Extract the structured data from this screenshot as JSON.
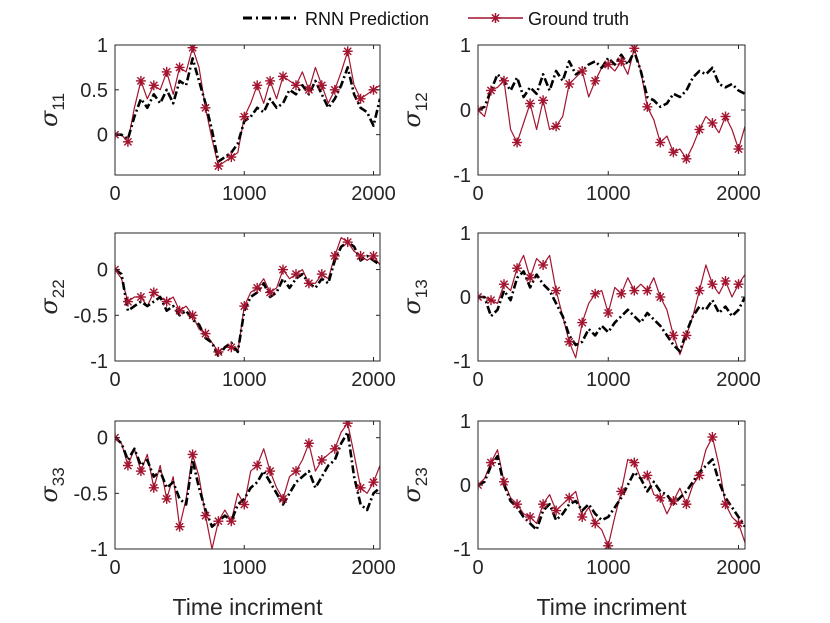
{
  "chart_data": {
    "type": "line",
    "legend": {
      "placement": "top",
      "entries": [
        {
          "name": "RNN Prediction",
          "color": "#000000",
          "style": "dash-dot"
        },
        {
          "name": "Ground truth",
          "color": "#a2142f",
          "style": "solid-asterisk"
        }
      ]
    },
    "colors": {
      "prediction": "#000000",
      "truth": "#a2142f",
      "axis": "#262626"
    },
    "subplots": [
      {
        "ylabel": "σ",
        "ysub": "11",
        "xlabel": "",
        "xlim": [
          0,
          2050
        ],
        "ylim": [
          -0.45,
          1.0
        ],
        "xticks": [
          0,
          1000,
          2000
        ],
        "yticks": [
          0,
          0.5,
          1
        ],
        "ytick_labels": [
          "0",
          "0.5",
          "1"
        ],
        "x": [
          0,
          50,
          100,
          150,
          200,
          250,
          300,
          350,
          400,
          450,
          500,
          550,
          600,
          650,
          700,
          750,
          800,
          850,
          900,
          950,
          1000,
          1050,
          1100,
          1150,
          1200,
          1250,
          1300,
          1350,
          1400,
          1450,
          1500,
          1550,
          1600,
          1650,
          1700,
          1750,
          1800,
          1850,
          1900,
          1950,
          2000,
          2050
        ],
        "series": [
          {
            "name": "RNN Prediction",
            "values": [
              0,
              0,
              -0.05,
              0.2,
              0.4,
              0.3,
              0.45,
              0.35,
              0.5,
              0.35,
              0.6,
              0.55,
              0.85,
              0.6,
              0.35,
              0.05,
              -0.3,
              -0.25,
              -0.2,
              -0.1,
              0.15,
              0.2,
              0.3,
              0.25,
              0.4,
              0.3,
              0.35,
              0.5,
              0.45,
              0.55,
              0.45,
              0.6,
              0.45,
              0.3,
              0.4,
              0.55,
              0.75,
              0.45,
              0.3,
              0.25,
              0.1,
              0.4
            ]
          },
          {
            "name": "Ground truth",
            "values": [
              0,
              0,
              -0.08,
              0.3,
              0.6,
              0.4,
              0.55,
              0.5,
              0.7,
              0.45,
              0.75,
              0.7,
              0.97,
              0.75,
              0.3,
              -0.05,
              -0.35,
              -0.3,
              -0.25,
              -0.2,
              0.2,
              0.35,
              0.55,
              0.35,
              0.6,
              0.4,
              0.65,
              0.6,
              0.55,
              0.7,
              0.5,
              0.75,
              0.55,
              0.35,
              0.5,
              0.7,
              0.93,
              0.55,
              0.4,
              0.45,
              0.5,
              0.55
            ]
          }
        ]
      },
      {
        "ylabel": "σ",
        "ysub": "12",
        "xlabel": "",
        "xlim": [
          0,
          2050
        ],
        "ylim": [
          -1,
          1
        ],
        "xticks": [
          0,
          1000,
          2000
        ],
        "yticks": [
          -1,
          0,
          1
        ],
        "ytick_labels": [
          "-1",
          "0",
          "1"
        ],
        "x": [
          0,
          50,
          100,
          150,
          200,
          250,
          300,
          350,
          400,
          450,
          500,
          550,
          600,
          650,
          700,
          750,
          800,
          850,
          900,
          950,
          1000,
          1050,
          1100,
          1150,
          1200,
          1250,
          1300,
          1350,
          1400,
          1450,
          1500,
          1550,
          1600,
          1650,
          1700,
          1750,
          1800,
          1850,
          1900,
          1950,
          2000,
          2050
        ],
        "series": [
          {
            "name": "RNN Prediction",
            "values": [
              0,
              0.05,
              0.3,
              0.55,
              0.45,
              0.3,
              0.5,
              0.2,
              0.35,
              0.25,
              0.55,
              0.3,
              0.6,
              0.45,
              0.75,
              0.55,
              0.6,
              0.7,
              0.75,
              0.65,
              0.8,
              0.7,
              0.85,
              0.7,
              0.9,
              0.6,
              0.2,
              0.15,
              0.05,
              0.1,
              0.25,
              0.2,
              0.3,
              0.5,
              0.6,
              0.55,
              0.65,
              0.4,
              0.35,
              0.4,
              0.3,
              0.25
            ]
          },
          {
            "name": "Ground truth",
            "values": [
              0,
              -0.1,
              0.3,
              0.35,
              0.45,
              -0.3,
              -0.5,
              -0.2,
              0.1,
              -0.3,
              0.15,
              -0.3,
              -0.25,
              -0.1,
              0.4,
              0.5,
              0.6,
              0.2,
              0.45,
              0.65,
              0.7,
              0.6,
              0.75,
              0.55,
              0.95,
              0.6,
              0.05,
              -0.15,
              -0.5,
              -0.4,
              -0.65,
              -0.6,
              -0.75,
              -0.55,
              -0.3,
              -0.1,
              -0.2,
              -0.35,
              -0.1,
              -0.3,
              -0.6,
              -0.25
            ]
          }
        ]
      },
      {
        "ylabel": "σ",
        "ysub": "22",
        "xlabel": "",
        "xlim": [
          0,
          2050
        ],
        "ylim": [
          -1,
          0.4
        ],
        "xticks": [
          0,
          1000,
          2000
        ],
        "yticks": [
          -1,
          -0.5,
          0
        ],
        "ytick_labels": [
          "-1",
          "-0.5",
          "0"
        ],
        "x": [
          0,
          50,
          100,
          150,
          200,
          250,
          300,
          350,
          400,
          450,
          500,
          550,
          600,
          650,
          700,
          750,
          800,
          850,
          900,
          950,
          1000,
          1050,
          1100,
          1150,
          1200,
          1250,
          1300,
          1350,
          1400,
          1450,
          1500,
          1550,
          1600,
          1650,
          1700,
          1750,
          1800,
          1850,
          1900,
          1950,
          2000,
          2050
        ],
        "series": [
          {
            "name": "RNN Prediction",
            "values": [
              0,
              -0.05,
              -0.45,
              -0.4,
              -0.35,
              -0.4,
              -0.35,
              -0.3,
              -0.45,
              -0.4,
              -0.5,
              -0.45,
              -0.55,
              -0.6,
              -0.75,
              -0.8,
              -0.95,
              -0.85,
              -0.8,
              -0.9,
              -0.45,
              -0.3,
              -0.25,
              -0.15,
              -0.3,
              -0.25,
              -0.1,
              -0.2,
              -0.1,
              -0.05,
              -0.15,
              -0.2,
              -0.1,
              -0.15,
              0.1,
              0.25,
              0.3,
              0.25,
              0.1,
              0.15,
              0.1,
              0.05
            ]
          },
          {
            "name": "Ground truth",
            "values": [
              0,
              -0.1,
              -0.35,
              -0.3,
              -0.3,
              -0.4,
              -0.25,
              -0.3,
              -0.35,
              -0.3,
              -0.45,
              -0.4,
              -0.5,
              -0.65,
              -0.7,
              -0.8,
              -0.9,
              -0.85,
              -0.85,
              -0.9,
              -0.4,
              -0.25,
              -0.2,
              -0.1,
              -0.25,
              -0.2,
              0,
              -0.1,
              -0.05,
              0,
              -0.15,
              -0.15,
              -0.05,
              -0.1,
              0.15,
              0.35,
              0.3,
              0.2,
              0.15,
              0.1,
              0.15,
              0.05
            ]
          }
        ]
      },
      {
        "ylabel": "σ",
        "ysub": "13",
        "xlabel": "",
        "xlim": [
          0,
          2050
        ],
        "ylim": [
          -1,
          1
        ],
        "xticks": [
          0,
          1000,
          2000
        ],
        "yticks": [
          -1,
          0,
          1
        ],
        "ytick_labels": [
          "-1",
          "0",
          "1"
        ],
        "x": [
          0,
          50,
          100,
          150,
          200,
          250,
          300,
          350,
          400,
          450,
          500,
          550,
          600,
          650,
          700,
          750,
          800,
          850,
          900,
          950,
          1000,
          1050,
          1100,
          1150,
          1200,
          1250,
          1300,
          1350,
          1400,
          1450,
          1500,
          1550,
          1600,
          1650,
          1700,
          1750,
          1800,
          1850,
          1900,
          1950,
          2000,
          2050
        ],
        "series": [
          {
            "name": "RNN Prediction",
            "values": [
              0,
              0,
              -0.3,
              -0.2,
              0.1,
              -0.05,
              0.3,
              0.4,
              0.15,
              0.35,
              0.2,
              0.1,
              -0.1,
              -0.3,
              -0.6,
              -0.75,
              -0.7,
              -0.5,
              -0.6,
              -0.45,
              -0.55,
              -0.4,
              -0.3,
              -0.2,
              -0.3,
              -0.4,
              -0.25,
              -0.35,
              -0.45,
              -0.6,
              -0.75,
              -0.85,
              -0.55,
              -0.3,
              -0.15,
              -0.2,
              -0.05,
              -0.25,
              -0.15,
              -0.3,
              -0.2,
              0
            ]
          },
          {
            "name": "Ground truth",
            "values": [
              0,
              0,
              -0.05,
              -0.1,
              0.2,
              0.1,
              0.45,
              0.65,
              0.3,
              0.6,
              0.5,
              0.65,
              0.1,
              -0.3,
              -0.7,
              -0.95,
              -0.4,
              -0.1,
              0.05,
              0.1,
              -0.25,
              0.15,
              0.05,
              0.3,
              0.1,
              0.2,
              0.1,
              0.3,
              0,
              -0.2,
              -0.6,
              -0.9,
              -0.6,
              -0.3,
              0.1,
              0.5,
              0.2,
              0.05,
              0.25,
              0,
              0.2,
              0.35
            ]
          }
        ]
      },
      {
        "ylabel": "σ",
        "ysub": "33",
        "xlabel": "Time incriment",
        "xlim": [
          0,
          2050
        ],
        "ylim": [
          -1,
          0.15
        ],
        "xticks": [
          0,
          1000,
          2000
        ],
        "yticks": [
          -1,
          -0.5,
          0
        ],
        "ytick_labels": [
          "-1",
          "-0.5",
          "0"
        ],
        "x": [
          0,
          50,
          100,
          150,
          200,
          250,
          300,
          350,
          400,
          450,
          500,
          550,
          600,
          650,
          700,
          750,
          800,
          850,
          900,
          950,
          1000,
          1050,
          1100,
          1150,
          1200,
          1250,
          1300,
          1350,
          1400,
          1450,
          1500,
          1550,
          1600,
          1650,
          1700,
          1750,
          1800,
          1850,
          1900,
          1950,
          2000,
          2050
        ],
        "series": [
          {
            "name": "RNN Prediction",
            "values": [
              0,
              -0.05,
              -0.2,
              -0.1,
              -0.25,
              -0.2,
              -0.35,
              -0.3,
              -0.45,
              -0.4,
              -0.55,
              -0.6,
              -0.2,
              -0.45,
              -0.65,
              -0.8,
              -0.75,
              -0.7,
              -0.75,
              -0.6,
              -0.55,
              -0.45,
              -0.4,
              -0.3,
              -0.4,
              -0.5,
              -0.6,
              -0.5,
              -0.4,
              -0.35,
              -0.3,
              -0.45,
              -0.35,
              -0.25,
              -0.2,
              -0.05,
              0.05,
              -0.35,
              -0.6,
              -0.65,
              -0.5,
              -0.45
            ]
          },
          {
            "name": "Ground truth",
            "values": [
              0,
              -0.05,
              -0.25,
              -0.1,
              -0.3,
              -0.15,
              -0.45,
              -0.25,
              -0.55,
              -0.35,
              -0.8,
              -0.55,
              -0.15,
              -0.35,
              -0.7,
              -1.0,
              -0.75,
              -0.65,
              -0.75,
              -0.5,
              -0.6,
              -0.3,
              -0.25,
              -0.1,
              -0.3,
              -0.45,
              -0.55,
              -0.35,
              -0.3,
              -0.2,
              -0.05,
              -0.3,
              -0.2,
              -0.15,
              -0.1,
              0.05,
              0.13,
              -0.15,
              -0.45,
              -0.5,
              -0.4,
              -0.25
            ]
          }
        ]
      },
      {
        "ylabel": "σ",
        "ysub": "23",
        "xlabel": "Time incriment",
        "xlim": [
          0,
          2050
        ],
        "ylim": [
          -1,
          1
        ],
        "xticks": [
          0,
          1000,
          2000
        ],
        "yticks": [
          -1,
          0,
          1
        ],
        "ytick_labels": [
          "-1",
          "0",
          "1"
        ],
        "x": [
          0,
          50,
          100,
          150,
          200,
          250,
          300,
          350,
          400,
          450,
          500,
          550,
          600,
          650,
          700,
          750,
          800,
          850,
          900,
          950,
          1000,
          1050,
          1100,
          1150,
          1200,
          1250,
          1300,
          1350,
          1400,
          1450,
          1500,
          1550,
          1600,
          1650,
          1700,
          1750,
          1800,
          1850,
          1900,
          1950,
          2000,
          2050
        ],
        "series": [
          {
            "name": "RNN Prediction",
            "values": [
              0,
              0.05,
              0.3,
              0.45,
              0,
              -0.25,
              -0.35,
              -0.5,
              -0.6,
              -0.7,
              -0.4,
              -0.3,
              -0.55,
              -0.45,
              -0.3,
              -0.25,
              -0.4,
              -0.3,
              -0.45,
              -0.55,
              -0.5,
              -0.35,
              -0.2,
              0,
              0.2,
              0.1,
              -0.1,
              0.05,
              -0.1,
              -0.15,
              -0.3,
              -0.2,
              -0.1,
              0.05,
              0.2,
              0.3,
              0.4,
              0.05,
              -0.2,
              -0.35,
              -0.5,
              -0.65
            ]
          },
          {
            "name": "Ground truth",
            "values": [
              0,
              0.1,
              0.35,
              0.55,
              0.05,
              -0.2,
              -0.3,
              -0.45,
              -0.5,
              -0.6,
              -0.3,
              -0.15,
              -0.4,
              -0.3,
              -0.2,
              -0.1,
              -0.5,
              -0.35,
              -0.6,
              -0.7,
              -0.95,
              -0.5,
              -0.1,
              0.4,
              0.35,
              0.1,
              0.15,
              -0.15,
              -0.2,
              -0.45,
              -0.25,
              -0.05,
              -0.3,
              0,
              0.15,
              0.55,
              0.75,
              0.3,
              -0.3,
              -0.5,
              -0.6,
              -0.9
            ]
          }
        ]
      }
    ]
  }
}
